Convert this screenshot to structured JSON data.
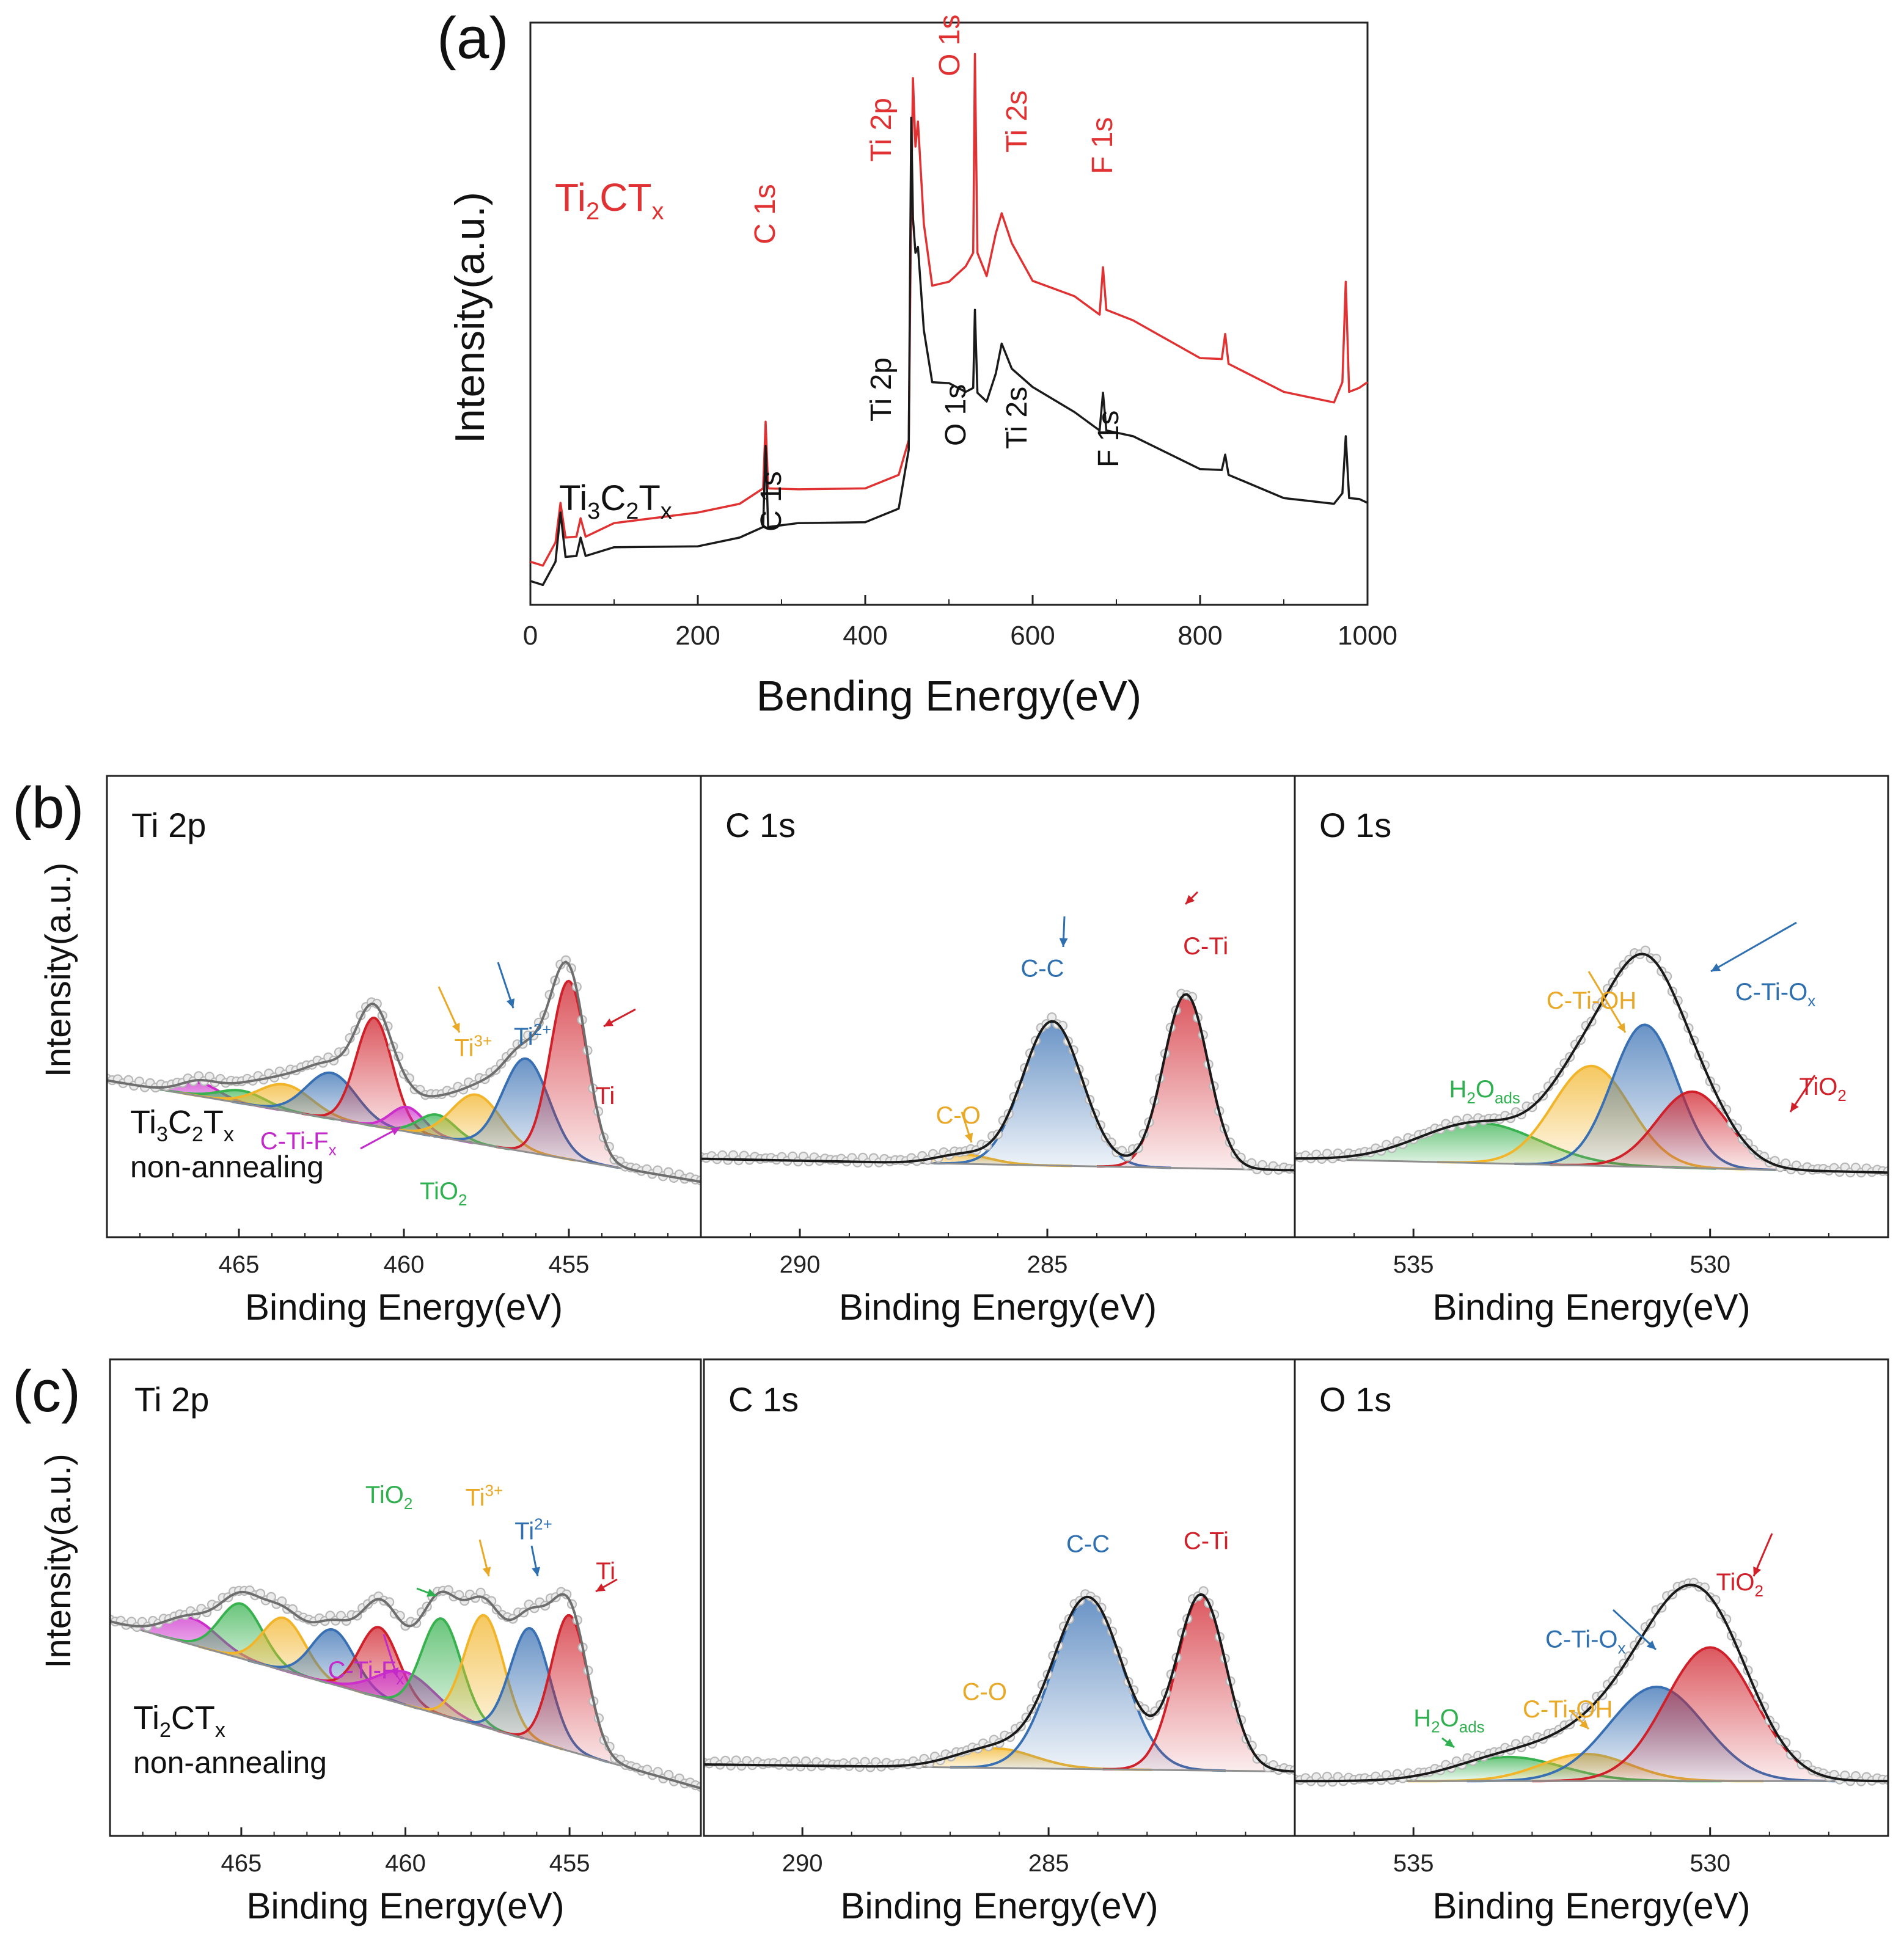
{
  "colors": {
    "red": "#e03232",
    "black": "#1a1a1a",
    "dot": "#b8b8b8",
    "envelope": "#6e6e6e",
    "Ti": "#d0202a",
    "Ti3": "#e9a825",
    "Ti2": "#2e6fb0",
    "TiO2": "#2fb04f",
    "CTiF": "#c22ac9",
    "peakTi3": "#f2b52a",
    "peakTi2": "#3870b3",
    "peakTiO2": "#37b24f",
    "peakF": "#cc2ecc",
    "peakExtra": "#3f8ee0"
  },
  "chart_data": [
    {
      "id": "a",
      "type": "line",
      "panel_label": "(a)",
      "xlabel": "Bending Energy(eV)",
      "ylabel": "Intensity(a.u.)",
      "xlim": [
        0,
        1000
      ],
      "xticks": [
        "0",
        "200",
        "400",
        "600",
        "800",
        "1000"
      ],
      "series": [
        {
          "name": "Ti2CTx",
          "label_main": "Ti",
          "label_sub1": "2",
          "label_mid": "CT",
          "label_sub2": "x",
          "color": "red",
          "x": [
            0,
            15,
            30,
            36,
            42,
            55,
            60,
            66,
            100,
            200,
            250,
            278,
            281,
            284,
            320,
            400,
            440,
            452,
            455,
            457,
            460,
            463,
            470,
            480,
            500,
            520,
            529,
            531,
            534,
            545,
            556,
            563,
            575,
            600,
            650,
            680,
            684,
            688,
            720,
            800,
            826,
            830,
            834,
            900,
            960,
            970,
            974,
            978,
            990,
            1000
          ],
          "y": [
            0.3,
            0.3,
            0.5,
            0.95,
            0.55,
            0.6,
            0.75,
            0.6,
            0.7,
            0.85,
            0.9,
            1.1,
            1.75,
            1.1,
            1.05,
            1.1,
            1.2,
            1.6,
            4.05,
            5.35,
            4.6,
            4.9,
            3.8,
            3.2,
            3.2,
            3.4,
            3.5,
            5.6,
            3.5,
            3.3,
            3.7,
            3.95,
            3.6,
            3.25,
            3.05,
            2.9,
            3.35,
            2.95,
            2.8,
            2.45,
            2.4,
            2.7,
            2.35,
            2.1,
            1.95,
            2.2,
            3.2,
            2.1,
            2.1,
            2.2
          ]
        },
        {
          "name": "Ti3C2Tx",
          "label_main": "Ti",
          "label_sub1": "3",
          "label_mid": "C",
          "label_sub2": "2",
          "label_tail": "T",
          "label_sub3": "x",
          "color": "black",
          "x": [
            0,
            15,
            30,
            36,
            42,
            55,
            60,
            66,
            100,
            200,
            250,
            278,
            281,
            284,
            320,
            400,
            440,
            452,
            455,
            457,
            460,
            463,
            470,
            480,
            500,
            520,
            529,
            531,
            534,
            545,
            556,
            563,
            575,
            600,
            650,
            680,
            684,
            688,
            720,
            800,
            826,
            830,
            834,
            900,
            960,
            970,
            974,
            978,
            990,
            1000
          ],
          "y": [
            0.1,
            0.1,
            0.3,
            0.85,
            0.35,
            0.4,
            0.55,
            0.4,
            0.45,
            0.5,
            0.55,
            0.7,
            1.5,
            0.7,
            0.7,
            0.75,
            0.85,
            1.5,
            4.9,
            3.9,
            3.5,
            3.6,
            2.7,
            2.2,
            2.15,
            2.1,
            2.1,
            2.95,
            2.05,
            2.0,
            2.25,
            2.6,
            2.3,
            2.15,
            1.85,
            1.7,
            2.05,
            1.7,
            1.6,
            1.3,
            1.25,
            1.45,
            1.2,
            1.0,
            0.9,
            1.05,
            1.6,
            1.0,
            0.95,
            0.95
          ]
        }
      ],
      "annotations": [
        {
          "text": "C 1s",
          "series": "Ti2CTx"
        },
        {
          "text": "Ti 2p",
          "series": "Ti2CTx"
        },
        {
          "text": "O 1s",
          "series": "Ti2CTx"
        },
        {
          "text": "Ti 2s",
          "series": "Ti2CTx"
        },
        {
          "text": "F 1s",
          "series": "Ti2CTx"
        },
        {
          "text": "C 1s",
          "series": "Ti3C2Tx"
        },
        {
          "text": "Ti 2p",
          "series": "Ti3C2Tx"
        },
        {
          "text": "O 1s",
          "series": "Ti3C2Tx"
        },
        {
          "text": "Ti 2s",
          "series": "Ti3C2Tx"
        },
        {
          "text": "F 1s",
          "series": "Ti3C2Tx"
        }
      ]
    },
    {
      "id": "b-ti",
      "type": "area",
      "row_label": "(b)",
      "title": "Ti 2p",
      "xlabel": "Binding Energy(eV)",
      "ylabel": "Intensity(a.u.)",
      "xlim": [
        469,
        451
      ],
      "xticks": [
        465,
        460,
        455
      ],
      "sample_line1": "Ti3C2Tx",
      "sample_line2": "non-annealing",
      "peaks": [
        {
          "center": 466.2,
          "amp": 0.32,
          "width": 0.6,
          "color": "peakF"
        },
        {
          "center": 464.9,
          "amp": 0.3,
          "width": 0.7,
          "color": "peakTiO2"
        },
        {
          "center": 463.6,
          "amp": 0.62,
          "width": 0.8,
          "color": "peakTi3"
        },
        {
          "center": 462.2,
          "amp": 1.08,
          "width": 0.75,
          "color": "peakTi2"
        },
        {
          "center": 460.9,
          "amp": 2.55,
          "width": 0.55,
          "color": "Ti"
        },
        {
          "center": 459.9,
          "amp": 0.58,
          "width": 0.5,
          "color": "peakF"
        },
        {
          "center": 459.0,
          "amp": 0.52,
          "width": 0.55,
          "color": "peakTiO2"
        },
        {
          "center": 457.8,
          "amp": 1.15,
          "width": 0.75,
          "color": "peakTi3"
        },
        {
          "center": 456.3,
          "amp": 2.2,
          "width": 0.7,
          "color": "peakTi2"
        },
        {
          "center": 455.0,
          "amp": 4.2,
          "width": 0.55,
          "color": "Ti"
        }
      ],
      "labels": [
        {
          "text": "Ti",
          "sup": "",
          "sub": "",
          "color": "Ti",
          "data_x": 453.9,
          "data_y": 1.45
        },
        {
          "text": "Ti",
          "sup": "2+",
          "sub": "",
          "color": "Ti2",
          "data_x": 456.1,
          "data_y": 2.55
        },
        {
          "text": "Ti",
          "sup": "3+",
          "sub": "",
          "color": "Ti3",
          "data_x": 457.9,
          "data_y": 2.05
        },
        {
          "text": "C-Ti-F",
          "sup": "",
          "sub": "x",
          "color": "CTiF",
          "data_x": 463.2,
          "data_y": -0.85
        },
        {
          "text": "TiO",
          "sup": "",
          "sub": "2",
          "color": "TiO2",
          "data_x": 458.8,
          "data_y": -1.45
        }
      ]
    },
    {
      "id": "b-c",
      "type": "area",
      "title": "C 1s",
      "xlabel": "Binding Energy(eV)",
      "xlim": [
        292,
        280
      ],
      "xticks": [
        290,
        285
      ],
      "peaks": [
        {
          "center": 286.7,
          "amp": 0.22,
          "width": 0.55,
          "color": "peakTi3"
        },
        {
          "center": 284.9,
          "amp": 3.4,
          "width": 0.6,
          "color": "peakTi2"
        },
        {
          "center": 282.2,
          "amp": 4.1,
          "width": 0.45,
          "color": "Ti"
        }
      ],
      "labels": [
        {
          "text": "C-O",
          "sup": "",
          "sub": "",
          "color": "Ti3",
          "data_x": 286.8,
          "data_y": 0.95
        },
        {
          "text": "C-C",
          "sup": "",
          "sub": "",
          "color": "Ti2",
          "data_x": 285.1,
          "data_y": 4.45
        },
        {
          "text": "C-Ti",
          "sup": "",
          "sub": "",
          "color": "Ti",
          "data_x": 281.8,
          "data_y": 5.05
        }
      ]
    },
    {
      "id": "b-o",
      "type": "area",
      "title": "O 1s",
      "xlabel": "Binding Energy(eV)",
      "xlim": [
        537,
        527
      ],
      "xticks": [
        535,
        530
      ],
      "peaks": [
        {
          "center": 533.9,
          "amp": 0.95,
          "width": 1.0,
          "color": "peakTiO2"
        },
        {
          "center": 532.0,
          "amp": 2.35,
          "width": 0.65,
          "color": "peakTi3"
        },
        {
          "center": 531.1,
          "amp": 3.35,
          "width": 0.55,
          "color": "peakTi2"
        },
        {
          "center": 530.3,
          "amp": 1.8,
          "width": 0.6,
          "color": "Ti"
        }
      ],
      "labels": [
        {
          "text": "C-Ti-O",
          "sup": "",
          "sub": "x",
          "color": "Ti2",
          "data_x": 528.9,
          "data_y": 4.0
        },
        {
          "text": "C-Ti-OH",
          "sup": "",
          "sub": "",
          "color": "Ti3",
          "data_x": 532.0,
          "data_y": 3.7
        },
        {
          "text": "H",
          "sub": "2",
          "mid": "O",
          "sub2": "ads",
          "color": "TiO2",
          "data_x": 533.8,
          "data_y": 1.55
        },
        {
          "text": "TiO",
          "sup": "",
          "sub": "2",
          "color": "Ti",
          "data_x": 528.1,
          "data_y": 1.8
        }
      ]
    },
    {
      "id": "c-ti",
      "type": "area",
      "row_label": "(c)",
      "title": "Ti 2p",
      "xlabel": "Binding Energy(eV)",
      "ylabel": "Intensity(a.u.)",
      "xlim": [
        469,
        451
      ],
      "xticks": [
        465,
        460,
        455
      ],
      "sample_line1": "Ti2CTx",
      "sample_line2": "non-annealing",
      "peaks": [
        {
          "center": 466.5,
          "amp": 0.6,
          "width": 0.8,
          "color": "peakF"
        },
        {
          "center": 465.0,
          "amp": 1.25,
          "width": 0.65,
          "color": "peakTiO2"
        },
        {
          "center": 463.7,
          "amp": 1.2,
          "width": 0.65,
          "color": "peakTi3"
        },
        {
          "center": 462.2,
          "amp": 1.25,
          "width": 0.65,
          "color": "peakTi2"
        },
        {
          "center": 460.8,
          "amp": 1.6,
          "width": 0.6,
          "color": "Ti"
        },
        {
          "center": 460.0,
          "amp": 0.75,
          "width": 0.9,
          "color": "peakF"
        },
        {
          "center": 458.9,
          "amp": 2.2,
          "width": 0.6,
          "color": "peakTiO2"
        },
        {
          "center": 457.6,
          "amp": 2.55,
          "width": 0.6,
          "color": "peakTi3"
        },
        {
          "center": 456.2,
          "amp": 2.55,
          "width": 0.6,
          "color": "peakTi2"
        },
        {
          "center": 455.0,
          "amp": 3.1,
          "width": 0.55,
          "color": "Ti"
        }
      ],
      "labels": [
        {
          "text": "Ti",
          "sup": "",
          "sub": "",
          "color": "Ti",
          "data_x": 453.9,
          "data_y": 4.15
        },
        {
          "text": "Ti",
          "sup": "2+",
          "sub": "",
          "color": "Ti2",
          "data_x": 456.1,
          "data_y": 4.6
        },
        {
          "text": "Ti",
          "sup": "3+",
          "sub": "",
          "color": "Ti3",
          "data_x": 457.6,
          "data_y": 5.05
        },
        {
          "text": "TiO",
          "sup": "",
          "sub": "2",
          "color": "TiO2",
          "data_x": 460.5,
          "data_y": 4.5
        },
        {
          "text": "C-Ti-F",
          "sup": "",
          "sub": "x",
          "color": "CTiF",
          "data_x": 461.2,
          "data_y": 0.35
        }
      ]
    },
    {
      "id": "c-c",
      "type": "area",
      "title": "C 1s",
      "xlabel": "Binding Energy(eV)",
      "xlim": [
        292,
        280
      ],
      "xticks": [
        290,
        285
      ],
      "peaks": [
        {
          "center": 286.1,
          "amp": 0.45,
          "width": 0.8,
          "color": "peakTi3"
        },
        {
          "center": 284.2,
          "amp": 3.9,
          "width": 0.7,
          "color": "peakTi2"
        },
        {
          "center": 281.9,
          "amp": 4.0,
          "width": 0.5,
          "color": "Ti"
        }
      ],
      "labels": [
        {
          "text": "C-O",
          "sup": "",
          "sub": "",
          "color": "Ti3",
          "data_x": 286.3,
          "data_y": 1.55
        },
        {
          "text": "C-C",
          "sup": "",
          "sub": "",
          "color": "Ti2",
          "data_x": 284.2,
          "data_y": 4.95
        },
        {
          "text": "C-Ti",
          "sup": "",
          "sub": "",
          "color": "Ti",
          "data_x": 281.8,
          "data_y": 5.05
        }
      ]
    },
    {
      "id": "c-o",
      "type": "area",
      "title": "O 1s",
      "xlabel": "Binding Energy(eV)",
      "xlim": [
        537,
        527
      ],
      "xticks": [
        535,
        530
      ],
      "peaks": [
        {
          "center": 533.4,
          "amp": 0.55,
          "width": 0.9,
          "color": "peakTiO2"
        },
        {
          "center": 532.1,
          "amp": 0.62,
          "width": 0.75,
          "color": "peakTi3"
        },
        {
          "center": 530.9,
          "amp": 2.15,
          "width": 0.8,
          "color": "peakTi2"
        },
        {
          "center": 530.0,
          "amp": 3.05,
          "width": 0.75,
          "color": "Ti"
        }
      ],
      "labels": [
        {
          "text": "TiO",
          "sup": "",
          "sub": "2",
          "color": "Ti",
          "data_x": 529.5,
          "data_y": 4.35
        },
        {
          "text": "C-Ti-O",
          "sup": "",
          "sub": "x",
          "color": "Ti2",
          "data_x": 532.1,
          "data_y": 3.05
        },
        {
          "text": "C-Ti-OH",
          "sup": "",
          "sub": "",
          "color": "Ti3",
          "data_x": 532.4,
          "data_y": 1.45
        },
        {
          "text": "H",
          "sub": "2",
          "mid": "O",
          "sub2": "ads",
          "color": "TiO2",
          "data_x": 534.4,
          "data_y": 1.25
        }
      ]
    }
  ]
}
